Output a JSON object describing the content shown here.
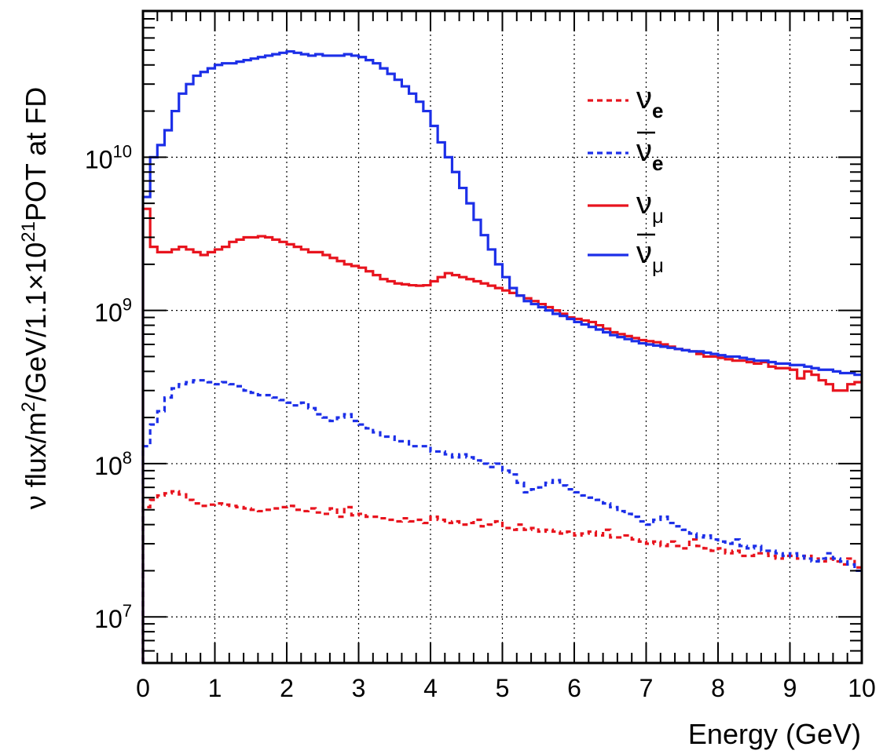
{
  "chart_data": {
    "type": "line",
    "step": true,
    "xlabel": "Energy (GeV)",
    "ylabel": {
      "parts": [
        "ν flux/m",
        "2",
        "/GeV/1.1×10",
        "21",
        "POT at FD"
      ]
    },
    "xlim": [
      0,
      10
    ],
    "ylim": [
      5000000,
      90000000000
    ],
    "log_y": true,
    "grid": true,
    "legend_placement": "top-right",
    "x_ticks": [
      "0",
      "1",
      "2",
      "3",
      "4",
      "5",
      "6",
      "7",
      "8",
      "9",
      "10"
    ],
    "y_ticks": [
      {
        "value": 10000000,
        "base": "10",
        "exp": "7"
      },
      {
        "value": 100000000,
        "base": "10",
        "exp": "8"
      },
      {
        "value": 1000000000,
        "base": "10",
        "exp": "9"
      },
      {
        "value": 10000000000,
        "base": "10",
        "exp": "10"
      }
    ],
    "bin_width": 0.1,
    "series": [
      {
        "name": "νe",
        "symbol": "ν",
        "subscript": "e",
        "bar": false,
        "color": "#e8141e",
        "dashed": true,
        "values": [
          52000000.0,
          58000000.0,
          62000000.0,
          64000000.0,
          66000000.0,
          63000000.0,
          58000000.0,
          55000000.0,
          53000000.0,
          54000000.0,
          55000000.0,
          54000000.0,
          53000000.0,
          52000000.0,
          51000000.0,
          50000000.0,
          49000000.0,
          50000000.0,
          51000000.0,
          52000000.0,
          53000000.0,
          50000000.0,
          49000000.0,
          51000000.0,
          48000000.0,
          47000000.0,
          51000000.0,
          45000000.0,
          52000000.0,
          46000000.0,
          47000000.0,
          45000000.0,
          45000000.0,
          44000000.0,
          43000000.0,
          42000000.0,
          44000000.0,
          42000000.0,
          43000000.0,
          41000000.0,
          45000000.0,
          43000000.0,
          41000000.0,
          42000000.0,
          40000000.0,
          41000000.0,
          43000000.0,
          39000000.0,
          40000000.0,
          42000000.0,
          38000000.0,
          37000000.0,
          40000000.0,
          37000000.0,
          38000000.0,
          36000000.0,
          37000000.0,
          36000000.0,
          35000000.0,
          36000000.0,
          34000000.0,
          35000000.0,
          36000000.0,
          34000000.0,
          37000000.0,
          33000000.0,
          33000000.0,
          34000000.0,
          32000000.0,
          31000000.0,
          30000000.0,
          31000000.0,
          29000000.0,
          31000000.0,
          29000000.0,
          28000000.0,
          32000000.0,
          29000000.0,
          28000000.0,
          27000000.0,
          28000000.0,
          26000000.0,
          27000000.0,
          25000000.0,
          25000000.0,
          26000000.0,
          26000000.0,
          25000000.0,
          24000000.0,
          25000000.0,
          25000000.0,
          24000000.0,
          25000000.0,
          24000000.0,
          23000000.0,
          24000000.0,
          23000000.0,
          22000000.0,
          24000000.0,
          21000000.0
        ]
      },
      {
        "name": "ν̄e",
        "symbol": "ν",
        "subscript": "e",
        "bar": true,
        "color": "#1c2fe8",
        "dashed": true,
        "values": [
          130000000.0,
          180000000.0,
          220000000.0,
          270000000.0,
          310000000.0,
          330000000.0,
          340000000.0,
          350000000.0,
          350000000.0,
          340000000.0,
          330000000.0,
          340000000.0,
          330000000.0,
          320000000.0,
          300000000.0,
          290000000.0,
          280000000.0,
          280000000.0,
          270000000.0,
          260000000.0,
          250000000.0,
          240000000.0,
          250000000.0,
          230000000.0,
          210000000.0,
          200000000.0,
          190000000.0,
          200000000.0,
          210000000.0,
          190000000.0,
          180000000.0,
          170000000.0,
          160000000.0,
          150000000.0,
          150000000.0,
          140000000.0,
          140000000.0,
          130000000.0,
          130000000.0,
          130000000.0,
          120000000.0,
          120000000.0,
          115000000.0,
          110000000.0,
          115000000.0,
          110000000.0,
          105000000.0,
          100000000.0,
          95000000.0,
          100000000.0,
          90000000.0,
          85000000.0,
          75000000.0,
          65000000.0,
          68000000.0,
          70000000.0,
          75000000.0,
          78000000.0,
          72000000.0,
          68000000.0,
          65000000.0,
          62000000.0,
          60000000.0,
          58000000.0,
          55000000.0,
          52000000.0,
          49000000.0,
          47000000.0,
          45000000.0,
          42000000.0,
          40000000.0,
          43000000.0,
          45000000.0,
          41000000.0,
          39000000.0,
          37000000.0,
          35000000.0,
          33000000.0,
          34000000.0,
          32000000.0,
          31000000.0,
          30000000.0,
          32000000.0,
          29000000.0,
          28000000.0,
          29000000.0,
          27000000.0,
          27000000.0,
          26000000.0,
          25000000.0,
          26000000.0,
          25000000.0,
          24000000.0,
          23000000.0,
          24000000.0,
          26000000.0,
          24000000.0,
          23000000.0,
          22000000.0,
          20000000.0
        ]
      },
      {
        "name": "νμ",
        "symbol": "ν",
        "subscript": "μ",
        "bar": false,
        "color": "#e8141e",
        "dashed": false,
        "values": [
          4600000000.0,
          2600000000.0,
          2400000000.0,
          2400000000.0,
          2500000000.0,
          2600000000.0,
          2500000000.0,
          2400000000.0,
          2300000000.0,
          2400000000.0,
          2500000000.0,
          2600000000.0,
          2800000000.0,
          2900000000.0,
          3000000000.0,
          3000000000.0,
          3050000000.0,
          3000000000.0,
          2900000000.0,
          2800000000.0,
          2700000000.0,
          2600000000.0,
          2500000000.0,
          2400000000.0,
          2400000000.0,
          2300000000.0,
          2200000000.0,
          2100000000.0,
          2000000000.0,
          1950000000.0,
          1900000000.0,
          1800000000.0,
          1700000000.0,
          1600000000.0,
          1550000000.0,
          1500000000.0,
          1480000000.0,
          1460000000.0,
          1450000000.0,
          1460000000.0,
          1550000000.0,
          1650000000.0,
          1750000000.0,
          1700000000.0,
          1650000000.0,
          1600000000.0,
          1550000000.0,
          1500000000.0,
          1450000000.0,
          1400000000.0,
          1350000000.0,
          1300000000.0,
          1250000000.0,
          1200000000.0,
          1150000000.0,
          1100000000.0,
          1050000000.0,
          1000000000.0,
          950000000.0,
          900000000.0,
          880000000.0,
          860000000.0,
          840000000.0,
          800000000.0,
          760000000.0,
          720000000.0,
          700000000.0,
          680000000.0,
          660000000.0,
          640000000.0,
          630000000.0,
          620000000.0,
          600000000.0,
          580000000.0,
          560000000.0,
          550000000.0,
          540000000.0,
          520000000.0,
          500000000.0,
          500000000.0,
          490000000.0,
          480000000.0,
          470000000.0,
          470000000.0,
          460000000.0,
          450000000.0,
          460000000.0,
          430000000.0,
          420000000.0,
          420000000.0,
          410000000.0,
          360000000.0,
          400000000.0,
          380000000.0,
          350000000.0,
          330000000.0,
          300000000.0,
          300000000.0,
          330000000.0,
          340000000.0
        ]
      },
      {
        "name": "ν̄μ",
        "symbol": "ν",
        "subscript": "μ",
        "bar": true,
        "color": "#1c2fe8",
        "dashed": false,
        "values": [
          5500000000.0,
          10000000000.0,
          12000000000.0,
          15000000000.0,
          20000000000.0,
          26000000000.0,
          30000000000.0,
          34000000000.0,
          36000000000.0,
          38000000000.0,
          40000000000.0,
          41000000000.0,
          41000000000.0,
          42000000000.0,
          43000000000.0,
          44000000000.0,
          45000000000.0,
          46000000000.0,
          47000000000.0,
          48000000000.0,
          49000000000.0,
          48000000000.0,
          47000000000.0,
          46000000000.0,
          47000000000.0,
          46000000000.0,
          46000000000.0,
          46000000000.0,
          47000000000.0,
          46000000000.0,
          45000000000.0,
          43000000000.0,
          41000000000.0,
          38000000000.0,
          35000000000.0,
          32000000000.0,
          29000000000.0,
          26000000000.0,
          23000000000.0,
          20000000000.0,
          16000000000.0,
          12500000000.0,
          10000000000.0,
          8000000000.0,
          6300000000.0,
          5000000000.0,
          3900000000.0,
          3100000000.0,
          2500000000.0,
          2000000000.0,
          1650000000.0,
          1400000000.0,
          1250000000.0,
          1150000000.0,
          1100000000.0,
          1050000000.0,
          1000000000.0,
          950000000.0,
          920000000.0,
          880000000.0,
          840000000.0,
          810000000.0,
          780000000.0,
          750000000.0,
          720000000.0,
          690000000.0,
          670000000.0,
          650000000.0,
          630000000.0,
          610000000.0,
          600000000.0,
          590000000.0,
          580000000.0,
          570000000.0,
          560000000.0,
          550000000.0,
          540000000.0,
          540000000.0,
          530000000.0,
          520000000.0,
          510000000.0,
          500000000.0,
          500000000.0,
          490000000.0,
          480000000.0,
          470000000.0,
          470000000.0,
          460000000.0,
          450000000.0,
          450000000.0,
          440000000.0,
          440000000.0,
          430000000.0,
          420000000.0,
          410000000.0,
          410000000.0,
          400000000.0,
          390000000.0,
          390000000.0,
          380000000.0
        ]
      }
    ]
  }
}
